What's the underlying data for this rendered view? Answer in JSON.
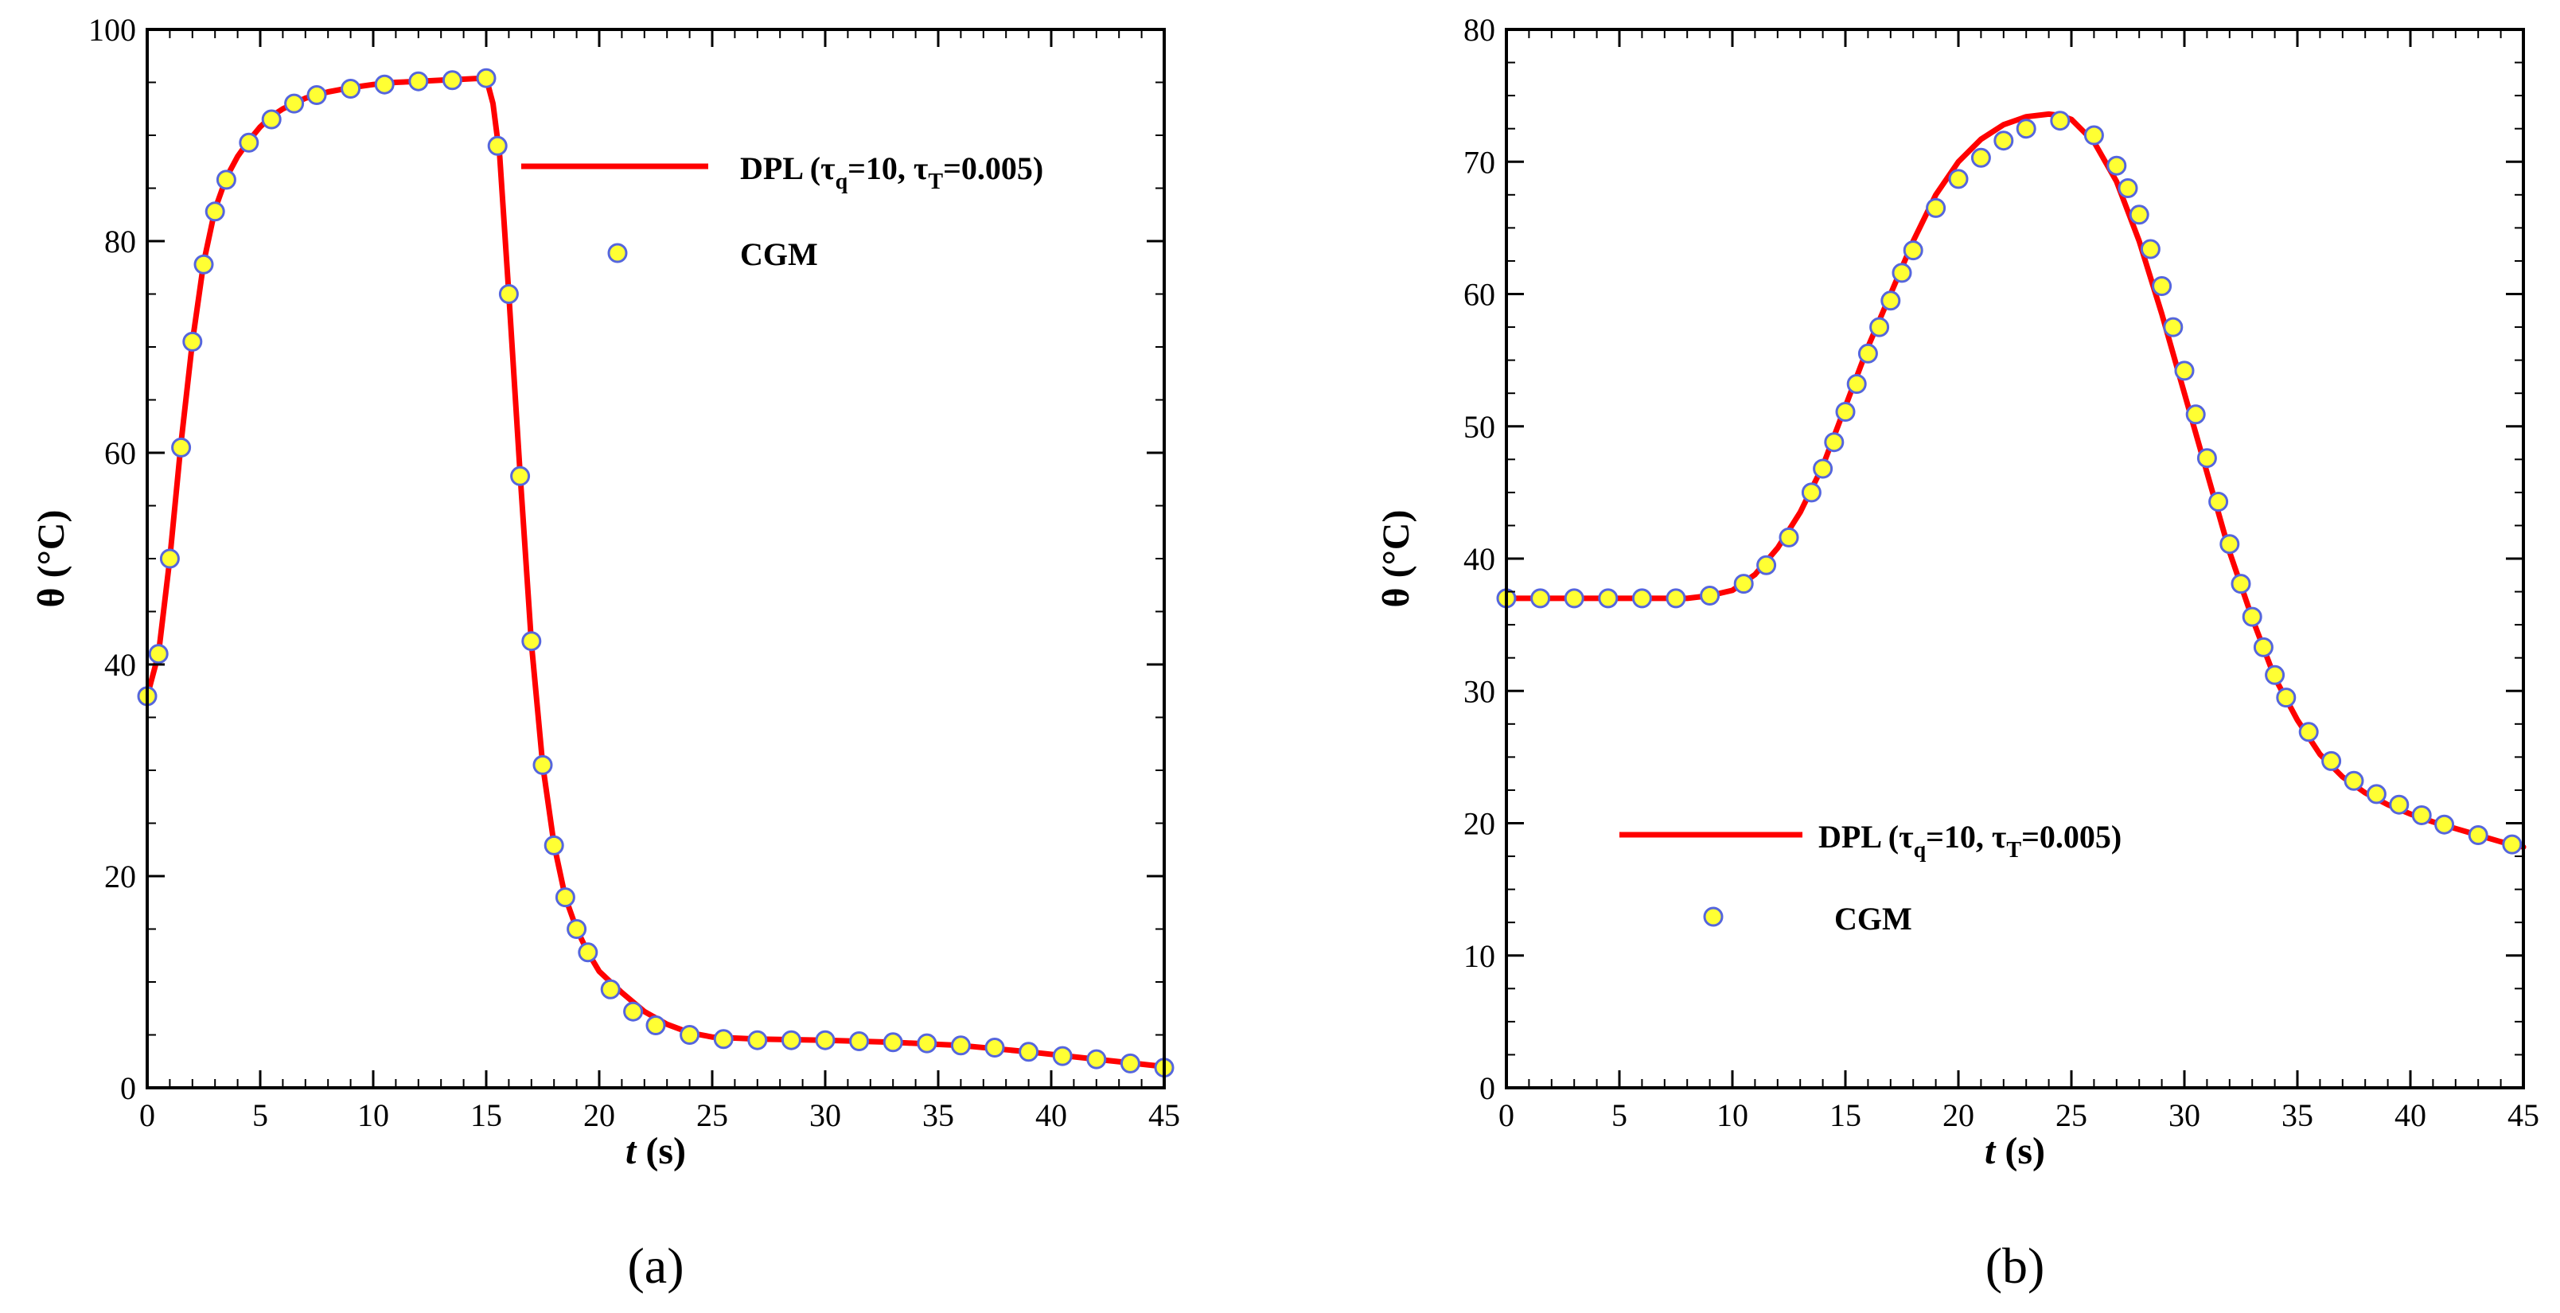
{
  "chart_data": [
    {
      "panel": "(a)",
      "type": "line",
      "xlabel": {
        "italic": "t",
        "rest": " (s)"
      },
      "ylabel": "θ (°C)",
      "xlim": [
        0,
        45
      ],
      "ylim": [
        0,
        100
      ],
      "xticks": [
        0,
        5,
        10,
        15,
        20,
        25,
        30,
        35,
        40,
        45
      ],
      "yticks": [
        0,
        20,
        40,
        60,
        80,
        100
      ],
      "legend_position": "top-right",
      "legend": {
        "line_label": {
          "main": "DPL (τ",
          "sub1": "q",
          "mid": "=10, τ",
          "sub2": "T",
          "end": "=0.005)"
        },
        "marker_label": "CGM"
      },
      "series": [
        {
          "name": "DPL (τq=10, τT=0.005)",
          "kind": "line",
          "color": "#ff0000",
          "x": [
            0,
            0.5,
            1,
            1.5,
            2,
            2.5,
            3,
            3.5,
            4,
            4.5,
            5,
            5.5,
            6,
            7,
            8,
            9,
            10,
            11,
            12,
            13,
            14,
            14.5,
            15,
            15.3,
            15.6,
            16,
            16.5,
            17,
            17.5,
            18,
            18.5,
            19,
            19.5,
            20,
            21,
            22,
            23,
            24,
            25,
            27,
            30,
            33,
            36,
            39,
            42,
            45
          ],
          "y": [
            37,
            41,
            50,
            61,
            70.5,
            78,
            83,
            86,
            88,
            89.5,
            90.8,
            91.8,
            92.5,
            93.5,
            94.1,
            94.5,
            94.8,
            95,
            95.1,
            95.2,
            95.3,
            95.35,
            95.4,
            93,
            88,
            75,
            58,
            42,
            30.5,
            23,
            18,
            15,
            12.8,
            11,
            9,
            7.2,
            6,
            5.2,
            4.8,
            4.6,
            4.5,
            4.3,
            4.0,
            3.4,
            2.7,
            2.0
          ]
        },
        {
          "name": "CGM",
          "kind": "markers",
          "color": "#ffff33",
          "edgecolor": "#5566dd",
          "x": [
            0,
            0.5,
            1,
            1.5,
            2,
            2.5,
            3,
            3.5,
            4.5,
            5.5,
            6.5,
            7.5,
            9,
            10.5,
            12,
            13.5,
            15,
            15.5,
            16,
            16.5,
            17,
            17.5,
            18,
            18.5,
            19,
            19.5,
            20.5,
            21.5,
            22.5,
            24,
            25.5,
            27,
            28.5,
            30,
            31.5,
            33,
            34.5,
            36,
            37.5,
            39,
            40.5,
            42,
            43.5,
            45
          ],
          "y": [
            37,
            41,
            50,
            60.5,
            70.5,
            77.8,
            82.8,
            85.8,
            89.3,
            91.5,
            93,
            93.8,
            94.4,
            94.8,
            95.1,
            95.2,
            95.4,
            89,
            75,
            57.8,
            42.2,
            30.5,
            22.9,
            18,
            15,
            12.8,
            9.3,
            7.2,
            5.9,
            5.0,
            4.6,
            4.5,
            4.5,
            4.5,
            4.4,
            4.3,
            4.2,
            4.0,
            3.8,
            3.4,
            3.0,
            2.7,
            2.3,
            1.9
          ]
        }
      ]
    },
    {
      "panel": "(b)",
      "type": "line",
      "xlabel": {
        "italic": "t",
        "rest": " (s)"
      },
      "ylabel": "θ (°C)",
      "xlim": [
        0,
        45
      ],
      "ylim": [
        0,
        80
      ],
      "xticks": [
        0,
        5,
        10,
        15,
        20,
        25,
        30,
        35,
        40,
        45
      ],
      "yticks": [
        0,
        10,
        20,
        30,
        40,
        50,
        60,
        70,
        80
      ],
      "legend_position": "bottom-right",
      "legend": {
        "line_label": {
          "main": "DPL (τ",
          "sub1": "q",
          "mid": "=10, τ",
          "sub2": "T",
          "end": "=0.005)"
        },
        "marker_label": "CGM"
      },
      "series": [
        {
          "name": "DPL (τq=10, τT=0.005)",
          "kind": "line",
          "color": "#ff0000",
          "x": [
            0,
            2,
            4,
            6,
            8,
            9,
            10,
            11,
            12,
            13,
            14,
            15,
            16,
            17,
            18,
            19,
            20,
            21,
            22,
            23,
            24,
            24.5,
            25,
            26,
            27,
            28,
            29,
            30,
            31,
            32,
            33,
            34,
            35,
            36,
            37,
            38,
            39,
            40,
            41,
            42,
            43,
            44,
            45
          ],
          "y": [
            37,
            37,
            37,
            37,
            37,
            37.2,
            37.6,
            38.8,
            40.8,
            43.5,
            47,
            51.5,
            56,
            60,
            64,
            67.5,
            70,
            71.7,
            72.8,
            73.4,
            73.6,
            73.5,
            73.2,
            71.5,
            68.5,
            64,
            58.5,
            52.5,
            46.5,
            40.5,
            35.5,
            31,
            27.8,
            25.2,
            23.5,
            22.3,
            21.4,
            20.7,
            20.1,
            19.6,
            19.1,
            18.6,
            18.2
          ]
        },
        {
          "name": "CGM",
          "kind": "markers",
          "color": "#ffff33",
          "edgecolor": "#5566dd",
          "x": [
            0,
            1.5,
            3,
            4.5,
            6,
            7.5,
            9,
            10.5,
            11.5,
            12.5,
            13.5,
            14,
            14.5,
            15,
            15.5,
            16,
            16.5,
            17,
            17.5,
            18,
            19,
            20,
            21,
            22,
            23,
            24.5,
            26,
            27,
            27.5,
            28,
            28.5,
            29,
            29.5,
            30,
            30.5,
            31,
            31.5,
            32,
            32.5,
            33,
            33.5,
            34,
            34.5,
            35.5,
            36.5,
            37.5,
            38.5,
            39.5,
            40.5,
            41.5,
            43,
            44.5
          ],
          "y": [
            37,
            37,
            37,
            37,
            37,
            37,
            37.2,
            38.1,
            39.5,
            41.6,
            45.0,
            46.8,
            48.8,
            51.1,
            53.2,
            55.5,
            57.5,
            59.5,
            61.6,
            63.3,
            66.5,
            68.7,
            70.3,
            71.6,
            72.5,
            73.1,
            72.0,
            69.7,
            68.0,
            66.0,
            63.4,
            60.6,
            57.5,
            54.2,
            50.9,
            47.6,
            44.3,
            41.1,
            38.1,
            35.6,
            33.3,
            31.2,
            29.5,
            26.9,
            24.7,
            23.2,
            22.2,
            21.4,
            20.6,
            19.9,
            19.1,
            18.4
          ]
        }
      ]
    }
  ]
}
